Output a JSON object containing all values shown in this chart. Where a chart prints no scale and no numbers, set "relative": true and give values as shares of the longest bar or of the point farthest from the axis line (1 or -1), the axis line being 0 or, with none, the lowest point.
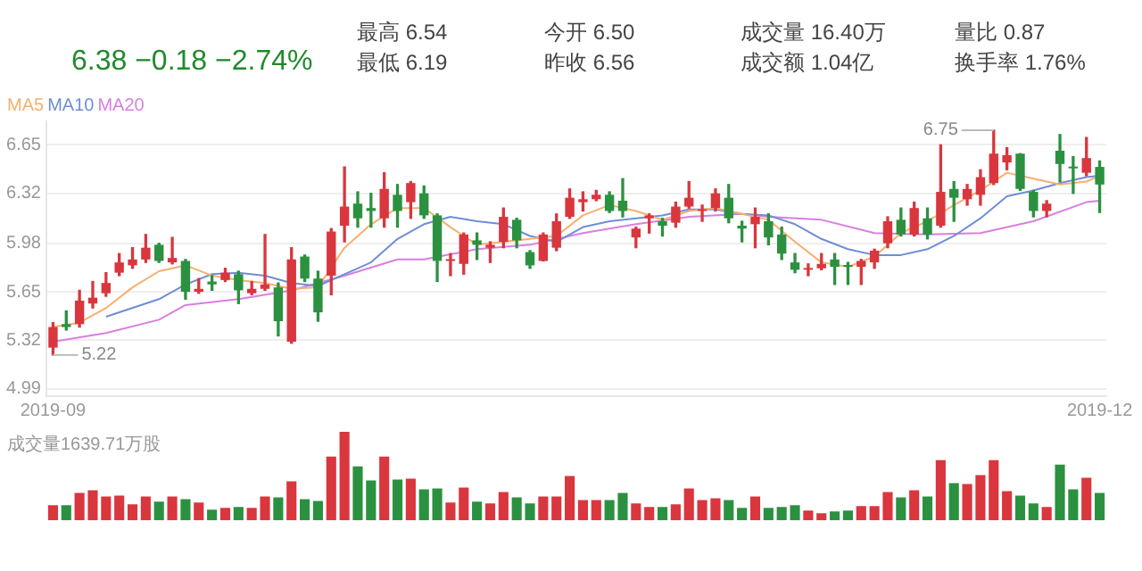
{
  "chart_data": [
    {
      "type": "candlestick",
      "categories": [
        "2019-09",
        null,
        null,
        null,
        null,
        null,
        null,
        null,
        null,
        null,
        null,
        null,
        null,
        null,
        null,
        null,
        null,
        null,
        null,
        null,
        null,
        null,
        null,
        null,
        null,
        null,
        null,
        null,
        null,
        null,
        null,
        null,
        null,
        null,
        null,
        null,
        null,
        null,
        null,
        null,
        null,
        null,
        null,
        null,
        null,
        null,
        null,
        null,
        null,
        null,
        null,
        null,
        null,
        null,
        null,
        null,
        null,
        null,
        null,
        null,
        null,
        null,
        null,
        null,
        null,
        null,
        null,
        null,
        null,
        null,
        null,
        null,
        null,
        null,
        null,
        null,
        null,
        null,
        null,
        "2019-12"
      ],
      "ohlc": [
        [
          5.27,
          5.44,
          5.22,
          5.41
        ],
        [
          5.43,
          5.52,
          5.39,
          5.41
        ],
        [
          5.43,
          5.66,
          5.41,
          5.59
        ],
        [
          5.57,
          5.72,
          5.54,
          5.61
        ],
        [
          5.64,
          5.78,
          5.62,
          5.71
        ],
        [
          5.78,
          5.91,
          5.76,
          5.85
        ],
        [
          5.83,
          5.95,
          5.81,
          5.87
        ],
        [
          5.87,
          6.04,
          5.85,
          5.95
        ],
        [
          5.97,
          5.98,
          5.85,
          5.86
        ],
        [
          5.85,
          6.02,
          5.84,
          5.88
        ],
        [
          5.86,
          5.87,
          5.6,
          5.65
        ],
        [
          5.65,
          5.74,
          5.64,
          5.67
        ],
        [
          5.72,
          5.76,
          5.66,
          5.7
        ],
        [
          5.73,
          5.81,
          5.72,
          5.78
        ],
        [
          5.77,
          5.79,
          5.57,
          5.66
        ],
        [
          5.64,
          5.72,
          5.63,
          5.67
        ],
        [
          5.67,
          6.04,
          5.66,
          5.7
        ],
        [
          5.68,
          5.71,
          5.35,
          5.45
        ],
        [
          5.31,
          5.95,
          5.3,
          5.87
        ],
        [
          5.89,
          5.9,
          5.72,
          5.74
        ],
        [
          5.74,
          5.79,
          5.45,
          5.51
        ],
        [
          5.76,
          6.08,
          5.63,
          6.06
        ],
        [
          6.1,
          6.5,
          5.99,
          6.23
        ],
        [
          6.25,
          6.33,
          6.09,
          6.15
        ],
        [
          6.22,
          6.32,
          6.09,
          6.2
        ],
        [
          6.15,
          6.46,
          6.09,
          6.35
        ],
        [
          6.31,
          6.38,
          6.09,
          6.2
        ],
        [
          6.26,
          6.4,
          6.15,
          6.39
        ],
        [
          6.32,
          6.37,
          6.15,
          6.17
        ],
        [
          6.17,
          6.18,
          5.72,
          5.86
        ],
        [
          5.86,
          5.91,
          5.76,
          5.87
        ],
        [
          5.84,
          6.05,
          5.77,
          6.04
        ],
        [
          6.0,
          6.05,
          5.87,
          5.97
        ],
        [
          5.95,
          5.99,
          5.85,
          5.97
        ],
        [
          5.99,
          6.22,
          5.95,
          6.16
        ],
        [
          6.14,
          6.15,
          5.95,
          6.0
        ],
        [
          5.92,
          5.93,
          5.81,
          5.83
        ],
        [
          5.86,
          6.05,
          5.86,
          6.04
        ],
        [
          5.95,
          6.18,
          5.93,
          6.13
        ],
        [
          6.16,
          6.35,
          6.15,
          6.29
        ],
        [
          6.26,
          6.33,
          6.2,
          6.28
        ],
        [
          6.28,
          6.34,
          6.27,
          6.31
        ],
        [
          6.31,
          6.33,
          6.19,
          6.2
        ],
        [
          6.27,
          6.42,
          6.16,
          6.2
        ],
        [
          6.02,
          6.09,
          5.95,
          6.08
        ],
        [
          6.15,
          6.18,
          6.05,
          6.17
        ],
        [
          6.13,
          6.15,
          6.03,
          6.1
        ],
        [
          6.12,
          6.26,
          6.09,
          6.23
        ],
        [
          6.23,
          6.4,
          6.22,
          6.29
        ],
        [
          6.2,
          6.24,
          6.13,
          6.21
        ],
        [
          6.22,
          6.35,
          6.2,
          6.32
        ],
        [
          6.29,
          6.38,
          6.12,
          6.15
        ],
        [
          6.1,
          6.13,
          5.99,
          6.08
        ],
        [
          6.11,
          6.22,
          5.95,
          6.16
        ],
        [
          6.13,
          6.18,
          5.97,
          6.02
        ],
        [
          6.04,
          6.09,
          5.87,
          5.91
        ],
        [
          5.85,
          5.91,
          5.78,
          5.8
        ],
        [
          5.8,
          5.84,
          5.76,
          5.81
        ],
        [
          5.81,
          5.91,
          5.8,
          5.84
        ],
        [
          5.87,
          5.91,
          5.7,
          5.82
        ],
        [
          5.83,
          5.85,
          5.7,
          5.82
        ],
        [
          5.82,
          5.87,
          5.7,
          5.86
        ],
        [
          5.85,
          5.94,
          5.81,
          5.93
        ],
        [
          5.98,
          6.16,
          5.95,
          6.13
        ],
        [
          6.14,
          6.22,
          6.03,
          6.04
        ],
        [
          6.04,
          6.26,
          6.03,
          6.22
        ],
        [
          6.15,
          6.22,
          6.01,
          6.04
        ],
        [
          6.1,
          6.65,
          6.09,
          6.33
        ],
        [
          6.35,
          6.4,
          6.13,
          6.29
        ],
        [
          6.28,
          6.38,
          6.24,
          6.35
        ],
        [
          6.31,
          6.48,
          6.24,
          6.43
        ],
        [
          6.39,
          6.75,
          6.38,
          6.59
        ],
        [
          6.53,
          6.63,
          6.48,
          6.58
        ],
        [
          6.59,
          6.59,
          6.34,
          6.35
        ],
        [
          6.33,
          6.34,
          6.16,
          6.2
        ],
        [
          6.2,
          6.27,
          6.16,
          6.25
        ],
        [
          6.61,
          6.72,
          6.4,
          6.52
        ],
        [
          6.5,
          6.57,
          6.32,
          6.49
        ],
        [
          6.46,
          6.7,
          6.44,
          6.56
        ],
        [
          6.5,
          6.54,
          6.19,
          6.38
        ]
      ],
      "colors": [
        "#d9363e",
        "#2b9140",
        "#d9363e",
        "#d9363e",
        "#d9363e",
        "#d9363e",
        "#d9363e",
        "#d9363e",
        "#2b9140",
        "#d9363e",
        "#2b9140",
        "#d9363e",
        "#2b9140",
        "#d9363e",
        "#2b9140",
        "#d9363e",
        "#d9363e",
        "#2b9140",
        "#d9363e",
        "#2b9140",
        "#2b9140",
        "#d9363e",
        "#d9363e",
        "#2b9140",
        "#2b9140",
        "#d9363e",
        "#2b9140",
        "#d9363e",
        "#2b9140",
        "#2b9140",
        "#d9363e",
        "#d9363e",
        "#2b9140",
        "#d9363e",
        "#d9363e",
        "#2b9140",
        "#2b9140",
        "#d9363e",
        "#d9363e",
        "#d9363e",
        "#d9363e",
        "#d9363e",
        "#2b9140",
        "#2b9140",
        "#d9363e",
        "#d9363e",
        "#2b9140",
        "#d9363e",
        "#d9363e",
        "#d9363e",
        "#d9363e",
        "#2b9140",
        "#2b9140",
        "#d9363e",
        "#2b9140",
        "#2b9140",
        "#2b9140",
        "#d9363e",
        "#d9363e",
        "#2b9140",
        "#2b9140",
        "#d9363e",
        "#d9363e",
        "#d9363e",
        "#2b9140",
        "#d9363e",
        "#2b9140",
        "#d9363e",
        "#2b9140",
        "#d9363e",
        "#d9363e",
        "#d9363e",
        "#d9363e",
        "#2b9140",
        "#2b9140",
        "#d9363e",
        "#2b9140",
        "#2b9140",
        "#d9363e",
        "#2b9140"
      ],
      "series": [
        {
          "name": "MA5",
          "type": "line",
          "color": "#f5b06e",
          "values": [
            5.41,
            null,
            5.44,
            null,
            5.54,
            null,
            5.68,
            null,
            5.79,
            null,
            5.83,
            null,
            5.76,
            null,
            5.73,
            null,
            5.71,
            null,
            5.67,
            null,
            5.68,
            null,
            5.95,
            null,
            6.11,
            null,
            6.22,
            null,
            6.22,
            null,
            6.09,
            null,
            5.97,
            null,
            5.99,
            null,
            6.01,
            null,
            6.03,
            null,
            6.17,
            null,
            6.24,
            null,
            6.2,
            null,
            6.14,
            null,
            6.2,
            null,
            6.22,
            null,
            6.18,
            null,
            6.14,
            null,
            5.99,
            null,
            5.85,
            null,
            5.82,
            null,
            5.89,
            null,
            6.05,
            null,
            6.13,
            null,
            6.24,
            null,
            6.34,
            null,
            6.46,
            null,
            6.42,
            null,
            6.38,
            null,
            6.4,
            6.44
          ]
        },
        {
          "name": "MA10",
          "type": "line",
          "color": "#6f8ed6",
          "values": [
            null,
            null,
            null,
            null,
            5.48,
            null,
            null,
            null,
            5.6,
            null,
            5.7,
            null,
            5.77,
            null,
            5.78,
            null,
            5.76,
            null,
            5.71,
            null,
            5.69,
            null,
            5.77,
            null,
            5.85,
            null,
            6.01,
            null,
            6.11,
            null,
            6.16,
            null,
            6.13,
            null,
            6.11,
            null,
            6.03,
            null,
            5.99,
            null,
            6.09,
            null,
            6.13,
            null,
            6.15,
            null,
            6.17,
            null,
            6.21,
            null,
            6.21,
            null,
            6.18,
            null,
            6.17,
            null,
            6.11,
            null,
            6.01,
            null,
            5.94,
            null,
            5.9,
            null,
            5.9,
            null,
            5.94,
            null,
            6.03,
            null,
            6.15,
            null,
            6.3,
            null,
            6.34,
            null,
            6.39,
            null,
            6.43,
            6.44
          ]
        },
        {
          "name": "MA20",
          "type": "line",
          "color": "#d97fe0",
          "values": [
            5.31,
            null,
            null,
            null,
            5.37,
            null,
            null,
            null,
            5.46,
            null,
            5.56,
            null,
            null,
            null,
            5.6,
            null,
            null,
            null,
            5.66,
            null,
            null,
            null,
            5.76,
            null,
            null,
            null,
            5.87,
            null,
            5.87,
            null,
            null,
            null,
            5.94,
            null,
            null,
            null,
            5.97,
            null,
            null,
            null,
            6.05,
            null,
            null,
            null,
            6.11,
            null,
            null,
            null,
            6.16,
            null,
            null,
            null,
            6.18,
            null,
            6.16,
            null,
            null,
            null,
            6.14,
            null,
            null,
            null,
            6.05,
            null,
            null,
            null,
            6.04,
            null,
            null,
            null,
            6.05,
            null,
            null,
            null,
            6.13,
            null,
            null,
            null,
            6.26,
            6.27
          ]
        }
      ],
      "ylim": [
        4.94,
        6.81
      ],
      "yticks": [
        4.99,
        5.32,
        5.65,
        5.98,
        6.32,
        6.65
      ],
      "grid": "y",
      "legend": "top left",
      "marker": "none",
      "annotations": [
        "6.38 −0.18 −2.74%",
        "最高 6.54",
        "今开 6.50",
        "成交量 16.40万",
        "量比 0.87",
        "最低 6.19",
        "昨收 6.56",
        "成交额 1.04亿",
        "换手率 1.76%",
        "6.75",
        "5.22"
      ]
    },
    {
      "type": "bar",
      "title": "成交量1639.71万股",
      "relative": true,
      "categories": [
        null,
        null,
        null,
        null,
        null,
        null,
        null,
        null,
        null,
        null,
        null,
        null,
        null,
        null,
        null,
        null,
        null,
        null,
        null,
        null,
        null,
        null,
        null,
        null,
        null,
        null,
        null,
        null,
        null,
        null,
        null,
        null,
        null,
        null,
        null,
        null,
        null,
        null,
        null,
        null,
        null,
        null,
        null,
        null,
        null,
        null,
        null,
        null,
        null,
        null,
        null,
        null,
        null,
        null,
        null,
        null,
        null,
        null,
        null,
        null,
        null,
        null,
        null,
        null,
        null,
        null,
        null,
        null,
        null,
        null,
        null,
        null,
        null,
        null,
        null,
        null,
        null,
        null,
        null,
        null
      ],
      "values": [
        0.17,
        0.17,
        0.31,
        0.34,
        0.27,
        0.28,
        0.18,
        0.27,
        0.21,
        0.27,
        0.24,
        0.2,
        0.12,
        0.14,
        0.15,
        0.14,
        0.27,
        0.26,
        0.44,
        0.24,
        0.22,
        0.72,
        1,
        0.61,
        0.45,
        0.72,
        0.46,
        0.47,
        0.35,
        0.36,
        0.2,
        0.37,
        0.21,
        0.19,
        0.32,
        0.26,
        0.19,
        0.27,
        0.27,
        0.5,
        0.23,
        0.23,
        0.23,
        0.31,
        0.19,
        0.15,
        0.15,
        0.18,
        0.36,
        0.23,
        0.25,
        0.23,
        0.14,
        0.27,
        0.14,
        0.15,
        0.17,
        0.11,
        0.08,
        0.1,
        0.11,
        0.16,
        0.16,
        0.32,
        0.26,
        0.34,
        0.27,
        0.68,
        0.42,
        0.41,
        0.51,
        0.68,
        0.33,
        0.28,
        0.19,
        0.15,
        0.63,
        0.35,
        0.48,
        0.31
      ],
      "colors": [
        "#d9363e",
        "#2b9140",
        "#d9363e",
        "#d9363e",
        "#d9363e",
        "#d9363e",
        "#d9363e",
        "#d9363e",
        "#2b9140",
        "#d9363e",
        "#2b9140",
        "#d9363e",
        "#2b9140",
        "#d9363e",
        "#2b9140",
        "#d9363e",
        "#d9363e",
        "#2b9140",
        "#d9363e",
        "#2b9140",
        "#2b9140",
        "#d9363e",
        "#d9363e",
        "#2b9140",
        "#2b9140",
        "#d9363e",
        "#2b9140",
        "#d9363e",
        "#2b9140",
        "#2b9140",
        "#d9363e",
        "#d9363e",
        "#2b9140",
        "#d9363e",
        "#d9363e",
        "#2b9140",
        "#2b9140",
        "#d9363e",
        "#d9363e",
        "#d9363e",
        "#d9363e",
        "#d9363e",
        "#2b9140",
        "#2b9140",
        "#d9363e",
        "#d9363e",
        "#2b9140",
        "#d9363e",
        "#d9363e",
        "#d9363e",
        "#d9363e",
        "#2b9140",
        "#2b9140",
        "#d9363e",
        "#2b9140",
        "#2b9140",
        "#2b9140",
        "#d9363e",
        "#d9363e",
        "#2b9140",
        "#2b9140",
        "#d9363e",
        "#d9363e",
        "#d9363e",
        "#2b9140",
        "#d9363e",
        "#2b9140",
        "#d9363e",
        "#2b9140",
        "#d9363e",
        "#d9363e",
        "#d9363e",
        "#d9363e",
        "#2b9140",
        "#2b9140",
        "#d9363e",
        "#2b9140",
        "#2b9140",
        "#d9363e",
        "#2b9140"
      ]
    }
  ]
}
